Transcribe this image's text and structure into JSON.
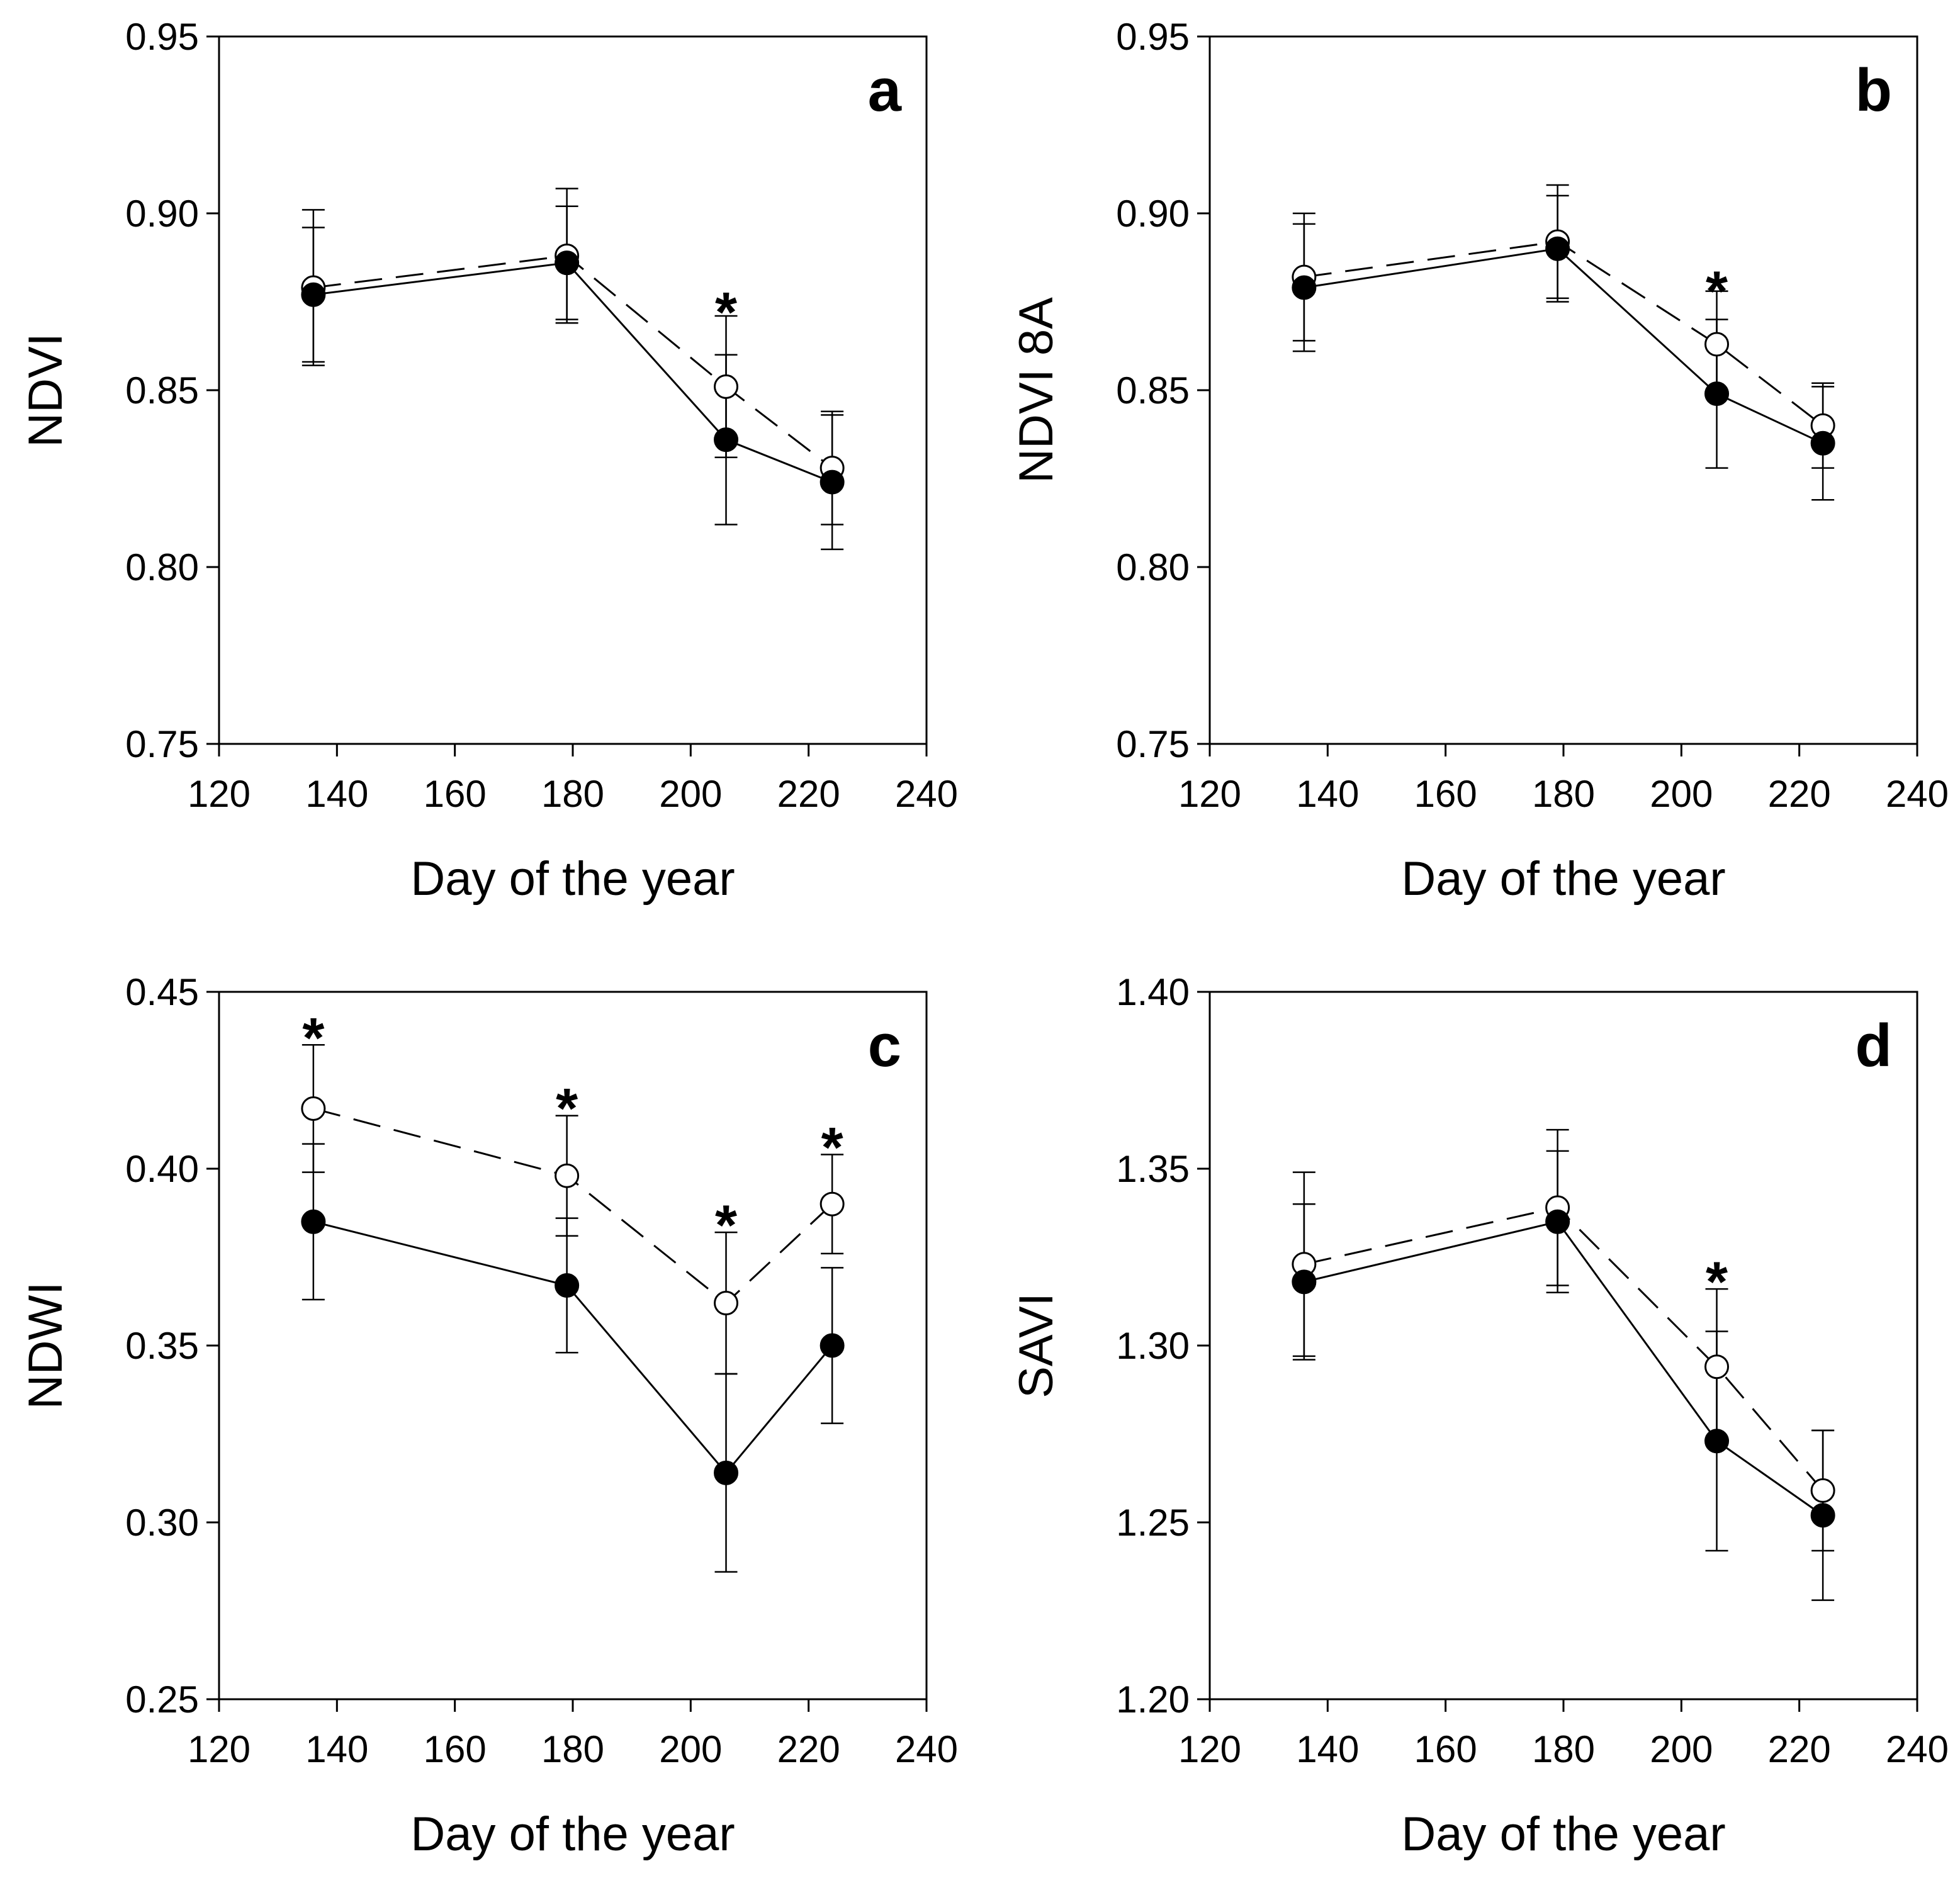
{
  "colors": {
    "ink": "#000000",
    "open_fill": "#ffffff",
    "filled_fill": "#000000"
  },
  "chart_data": [
    {
      "type": "line",
      "panel_label": "a",
      "xlabel": "Day of the year",
      "ylabel": "NDVI",
      "xlim": [
        120,
        240
      ],
      "ylim": [
        0.75,
        0.95
      ],
      "xticks": [
        120,
        140,
        160,
        180,
        200,
        220,
        240
      ],
      "yticks": [
        0.75,
        0.8,
        0.85,
        0.9,
        0.95
      ],
      "x_tick_labels": [
        "120",
        "140",
        "160",
        "180",
        "200",
        "220",
        "240"
      ],
      "y_tick_labels": [
        "0.75",
        "0.80",
        "0.85",
        "0.90",
        "0.95"
      ],
      "grid": false,
      "legend": "none",
      "series": [
        {
          "marker": "open-circle",
          "line": "dashed",
          "x": [
            136,
            179,
            206,
            224
          ],
          "y": [
            0.879,
            0.888,
            0.851,
            0.828
          ],
          "err": [
            0.022,
            0.019,
            0.02,
            0.016
          ]
        },
        {
          "marker": "filled-circle",
          "line": "solid",
          "x": [
            136,
            179,
            206,
            224
          ],
          "y": [
            0.877,
            0.886,
            0.836,
            0.824
          ],
          "err": [
            0.019,
            0.016,
            0.024,
            0.019
          ]
        }
      ],
      "annotations": [
        {
          "text": "*",
          "x": 206,
          "y": 0.874
        }
      ]
    },
    {
      "type": "line",
      "panel_label": "b",
      "xlabel": "Day of the year",
      "ylabel": "NDVI 8A",
      "xlim": [
        120,
        240
      ],
      "ylim": [
        0.75,
        0.95
      ],
      "xticks": [
        120,
        140,
        160,
        180,
        200,
        220,
        240
      ],
      "yticks": [
        0.75,
        0.8,
        0.85,
        0.9,
        0.95
      ],
      "x_tick_labels": [
        "120",
        "140",
        "160",
        "180",
        "200",
        "220",
        "240"
      ],
      "y_tick_labels": [
        "0.75",
        "0.80",
        "0.85",
        "0.90",
        "0.95"
      ],
      "grid": false,
      "legend": "none",
      "series": [
        {
          "marker": "open-circle",
          "line": "dashed",
          "x": [
            136,
            179,
            206,
            224
          ],
          "y": [
            0.882,
            0.892,
            0.863,
            0.84
          ],
          "err": [
            0.018,
            0.016,
            0.015,
            0.012
          ]
        },
        {
          "marker": "filled-circle",
          "line": "solid",
          "x": [
            136,
            179,
            206,
            224
          ],
          "y": [
            0.879,
            0.89,
            0.849,
            0.835
          ],
          "err": [
            0.018,
            0.015,
            0.021,
            0.016
          ]
        }
      ],
      "annotations": [
        {
          "text": "*",
          "x": 206,
          "y": 0.88
        }
      ]
    },
    {
      "type": "line",
      "panel_label": "c",
      "xlabel": "Day of the year",
      "ylabel": "NDWI",
      "xlim": [
        120,
        240
      ],
      "ylim": [
        0.25,
        0.45
      ],
      "xticks": [
        120,
        140,
        160,
        180,
        200,
        220,
        240
      ],
      "yticks": [
        0.25,
        0.3,
        0.35,
        0.4,
        0.45
      ],
      "x_tick_labels": [
        "120",
        "140",
        "160",
        "180",
        "200",
        "220",
        "240"
      ],
      "y_tick_labels": [
        "0.25",
        "0.30",
        "0.35",
        "0.40",
        "0.45"
      ],
      "grid": false,
      "legend": "none",
      "series": [
        {
          "marker": "open-circle",
          "line": "dashed",
          "x": [
            136,
            179,
            206,
            224
          ],
          "y": [
            0.417,
            0.398,
            0.362,
            0.39
          ],
          "err": [
            0.018,
            0.017,
            0.02,
            0.014
          ]
        },
        {
          "marker": "filled-circle",
          "line": "solid",
          "x": [
            136,
            179,
            206,
            224
          ],
          "y": [
            0.385,
            0.367,
            0.314,
            0.35
          ],
          "err": [
            0.022,
            0.019,
            0.028,
            0.022
          ]
        }
      ],
      "annotations": [
        {
          "text": "*",
          "x": 136,
          "y": 0.439
        },
        {
          "text": "*",
          "x": 179,
          "y": 0.419
        },
        {
          "text": "*",
          "x": 206,
          "y": 0.386
        },
        {
          "text": "*",
          "x": 224,
          "y": 0.408
        }
      ]
    },
    {
      "type": "line",
      "panel_label": "d",
      "xlabel": "Day of the year",
      "ylabel": "SAVI",
      "xlim": [
        120,
        240
      ],
      "ylim": [
        1.2,
        1.4
      ],
      "xticks": [
        120,
        140,
        160,
        180,
        200,
        220,
        240
      ],
      "yticks": [
        1.2,
        1.25,
        1.3,
        1.35,
        1.4
      ],
      "x_tick_labels": [
        "120",
        "140",
        "160",
        "180",
        "200",
        "220",
        "240"
      ],
      "y_tick_labels": [
        "1.20",
        "1.25",
        "1.30",
        "1.35",
        "1.40"
      ],
      "grid": false,
      "legend": "none",
      "series": [
        {
          "marker": "open-circle",
          "line": "dashed",
          "x": [
            136,
            179,
            206,
            224
          ],
          "y": [
            1.323,
            1.339,
            1.294,
            1.259
          ],
          "err": [
            0.026,
            0.022,
            0.022,
            0.017
          ]
        },
        {
          "marker": "filled-circle",
          "line": "solid",
          "x": [
            136,
            179,
            206,
            224
          ],
          "y": [
            1.318,
            1.335,
            1.273,
            1.252
          ],
          "err": [
            0.022,
            0.02,
            0.031,
            0.024
          ]
        }
      ],
      "annotations": [
        {
          "text": "*",
          "x": 206,
          "y": 1.32
        }
      ]
    }
  ]
}
